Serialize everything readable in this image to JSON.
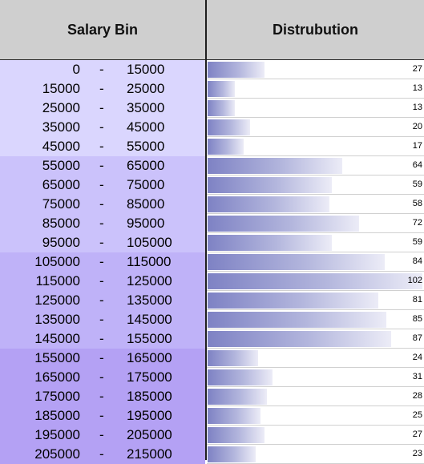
{
  "header": {
    "bin_label": "Salary Bin",
    "dist_label": "Distrubution"
  },
  "scale_max": 102,
  "group_colors": [
    "#dad6fe",
    "#cbc2fb",
    "#bfb2f8",
    "#b4a1f4"
  ],
  "rows": [
    {
      "lo": "0",
      "hi": "15000",
      "count": 27
    },
    {
      "lo": "15000",
      "hi": "25000",
      "count": 13
    },
    {
      "lo": "25000",
      "hi": "35000",
      "count": 13
    },
    {
      "lo": "35000",
      "hi": "45000",
      "count": 20
    },
    {
      "lo": "45000",
      "hi": "55000",
      "count": 17
    },
    {
      "lo": "55000",
      "hi": "65000",
      "count": 64
    },
    {
      "lo": "65000",
      "hi": "75000",
      "count": 59
    },
    {
      "lo": "75000",
      "hi": "85000",
      "count": 58
    },
    {
      "lo": "85000",
      "hi": "95000",
      "count": 72
    },
    {
      "lo": "95000",
      "hi": "105000",
      "count": 59
    },
    {
      "lo": "105000",
      "hi": "115000",
      "count": 84
    },
    {
      "lo": "115000",
      "hi": "125000",
      "count": 102
    },
    {
      "lo": "125000",
      "hi": "135000",
      "count": 81
    },
    {
      "lo": "135000",
      "hi": "145000",
      "count": 85
    },
    {
      "lo": "145000",
      "hi": "155000",
      "count": 87
    },
    {
      "lo": "155000",
      "hi": "165000",
      "count": 24
    },
    {
      "lo": "165000",
      "hi": "175000",
      "count": 31
    },
    {
      "lo": "175000",
      "hi": "185000",
      "count": 28
    },
    {
      "lo": "185000",
      "hi": "195000",
      "count": 25
    },
    {
      "lo": "195000",
      "hi": "205000",
      "count": 27
    },
    {
      "lo": "205000",
      "hi": "215000",
      "count": 23
    }
  ],
  "dash": "-"
}
